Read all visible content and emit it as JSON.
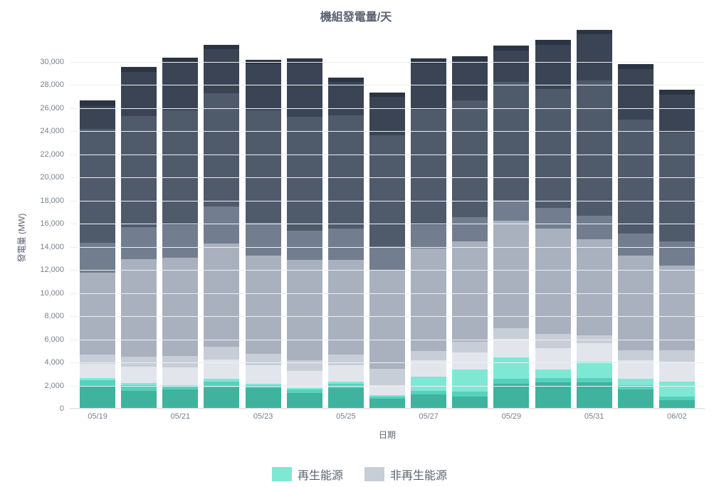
{
  "chart": {
    "type": "stacked-bar",
    "title": "機組發電量/天",
    "y_axis_label": "發電量 (MW)",
    "x_axis_label": "日期",
    "background_color": "#ffffff",
    "grid_color": "#eef0f2",
    "axis_text_color": "#7a828e",
    "title_color": "#5a6270",
    "title_fontsize": 16,
    "label_fontsize": 12,
    "tick_fontsize": 11,
    "ylim": [
      0,
      32000
    ],
    "ytick_step": 2000,
    "yticks": [
      0,
      2000,
      4000,
      6000,
      8000,
      10000,
      12000,
      14000,
      16000,
      18000,
      20000,
      22000,
      24000,
      26000,
      28000,
      30000
    ],
    "bar_width_ratio": 0.85,
    "categories": [
      "05/19",
      "05/20",
      "05/21",
      "05/22",
      "05/23",
      "05/24",
      "05/25",
      "05/26",
      "05/27",
      "05/28",
      "05/29",
      "05/30",
      "05/31",
      "06/01",
      "06/02"
    ],
    "x_tick_labels": [
      "05/19",
      "05/21",
      "05/23",
      "05/25",
      "05/27",
      "05/29",
      "05/31",
      "06/02"
    ],
    "x_tick_indices": [
      0,
      2,
      4,
      6,
      8,
      10,
      12,
      14
    ],
    "series": [
      {
        "id": "ren1",
        "group": "renewable",
        "color": "#3fb39e"
      },
      {
        "id": "ren2",
        "group": "renewable",
        "color": "#56d1bb"
      },
      {
        "id": "ren3",
        "group": "renewable",
        "color": "#7ee8d4"
      },
      {
        "id": "nonren1",
        "group": "nonrenewable",
        "color": "#e2e6ec"
      },
      {
        "id": "nonren2",
        "group": "nonrenewable",
        "color": "#c8ced8"
      },
      {
        "id": "nonren3",
        "group": "nonrenewable",
        "color": "#a9b1bf"
      },
      {
        "id": "nonren4",
        "group": "nonrenewable",
        "color": "#727e8f"
      },
      {
        "id": "nonren5",
        "group": "nonrenewable",
        "color": "#4f5a6b"
      },
      {
        "id": "nonren6",
        "group": "nonrenewable",
        "color": "#3a4454"
      },
      {
        "id": "nonren7",
        "group": "nonrenewable",
        "color": "#2b3442"
      }
    ],
    "data": {
      "ren1": [
        1900,
        1500,
        1600,
        1800,
        1700,
        1300,
        1700,
        800,
        1200,
        1000,
        2100,
        2200,
        2200,
        1600,
        700
      ],
      "ren2": [
        500,
        450,
        300,
        500,
        300,
        300,
        400,
        200,
        300,
        400,
        400,
        400,
        400,
        400,
        300
      ],
      "ren3": [
        200,
        200,
        100,
        200,
        100,
        100,
        200,
        100,
        1200,
        1900,
        1900,
        700,
        1400,
        500,
        1300
      ],
      "nonren1": [
        1200,
        1400,
        1500,
        1700,
        1600,
        1500,
        1400,
        900,
        1400,
        1500,
        1600,
        1900,
        1600,
        1600,
        1700
      ],
      "nonren2": [
        800,
        900,
        1000,
        1100,
        1000,
        900,
        900,
        1400,
        800,
        900,
        900,
        1200,
        700,
        900,
        1000
      ],
      "nonren3": [
        7100,
        8400,
        8500,
        8900,
        8500,
        8700,
        8200,
        8500,
        8900,
        8700,
        9300,
        9100,
        8300,
        8200,
        7300
      ],
      "nonren4": [
        2600,
        2800,
        2800,
        3200,
        2800,
        2500,
        2700,
        2100,
        2000,
        2100,
        1800,
        1800,
        2000,
        1900,
        2100
      ],
      "nonren5": [
        9800,
        9600,
        9900,
        9800,
        9700,
        9900,
        9800,
        9600,
        10000,
        10100,
        10200,
        10300,
        11700,
        9800,
        9400
      ],
      "nonren6": [
        2000,
        3800,
        4200,
        3800,
        4000,
        4600,
        2900,
        3300,
        4000,
        3400,
        2700,
        3800,
        4000,
        4400,
        3300
      ],
      "nonren7": [
        500,
        400,
        400,
        400,
        400,
        400,
        350,
        350,
        400,
        400,
        400,
        400,
        400,
        400,
        400
      ]
    },
    "legend": {
      "position": "bottom-center",
      "items": [
        {
          "label": "再生能源",
          "swatch_color": "#7ee8d4"
        },
        {
          "label": "非再生能源",
          "swatch_color": "#c8ced8"
        }
      ]
    }
  }
}
